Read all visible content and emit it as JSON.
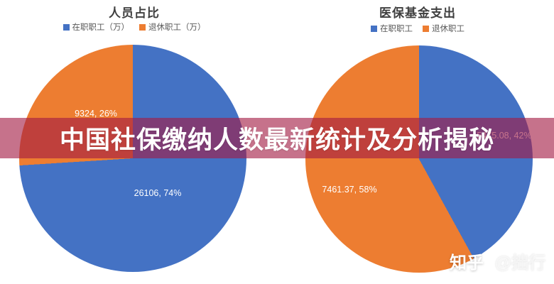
{
  "banner": {
    "text": "中国社保缴纳人数最新统计及分析揭秘"
  },
  "watermark": {
    "brand": "知乎",
    "author": "@拙行"
  },
  "styles": {
    "banner_bg": "rgba(163,28,68,0.62)",
    "blue": "#4472C4",
    "orange": "#ED7D31",
    "title_color": "#3f3f3f",
    "legend_text_color": "#595959"
  },
  "chart_data": [
    {
      "type": "pie",
      "title": "人员占比",
      "legend_position": "top",
      "categories": [
        "在职职工（万）",
        "退休职工（万）"
      ],
      "values": [
        26106,
        9324
      ],
      "percentages": [
        74,
        26
      ],
      "colors": [
        "#4472C4",
        "#ED7D31"
      ],
      "data_labels": [
        "26106, 74%",
        "9324, 26%"
      ],
      "start_angle": "top",
      "direction": "clockwise"
    },
    {
      "type": "pie",
      "title": "医保基金支出",
      "legend_position": "top",
      "categories": [
        "在职职工",
        "退休职工"
      ],
      "values": [
        5475.08,
        7461.37
      ],
      "percentages": [
        42,
        58
      ],
      "colors": [
        "#4472C4",
        "#ED7D31"
      ],
      "data_labels": [
        "5475.08, 42%",
        "7461.37, 58%"
      ],
      "start_angle": "top",
      "direction": "clockwise"
    }
  ]
}
